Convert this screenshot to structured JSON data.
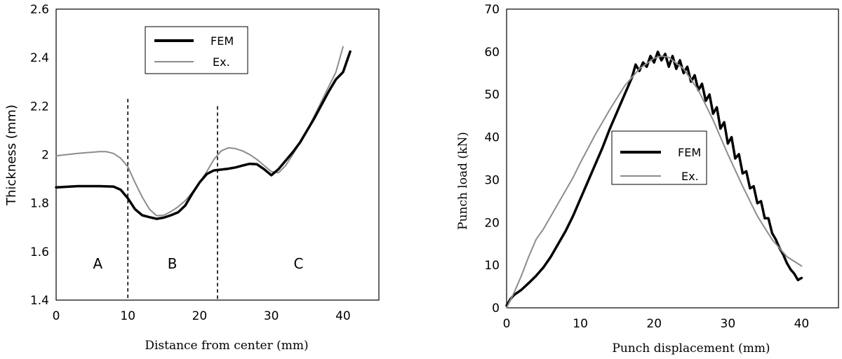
{
  "chart_data": [
    {
      "type": "line",
      "xlabel": "Distance from center (mm)",
      "ylabel": "Thickness (mm)",
      "xlim": [
        0,
        45
      ],
      "ylim": [
        1.4,
        2.6
      ],
      "xticks": [
        "0",
        "10",
        "20",
        "30",
        "40"
      ],
      "yticks": [
        "1.4",
        "1.6",
        "1.8",
        "2",
        "2.2",
        "2.4",
        "2.6"
      ],
      "legend": [
        "FEM",
        "Ex."
      ],
      "legend_position": "top-center",
      "region_labels": [
        {
          "text": "A",
          "x": 5.8,
          "y": 1.55
        },
        {
          "text": "B",
          "x": 16.2,
          "y": 1.55
        },
        {
          "text": "C",
          "x": 33.8,
          "y": 1.55
        }
      ],
      "dividers": [
        {
          "x": 10,
          "y_top": 2.23
        },
        {
          "x": 22.5,
          "y_top": 2.2
        }
      ],
      "series": [
        {
          "name": "FEM",
          "color": "#000000",
          "x": [
            0,
            3,
            6,
            8,
            9,
            10,
            11,
            12,
            13,
            14,
            15,
            16,
            17,
            18,
            19,
            20,
            21,
            22,
            23,
            24,
            25,
            26,
            27,
            28,
            29,
            30,
            31,
            32,
            33,
            34,
            35,
            36,
            37,
            38,
            39,
            40,
            41
          ],
          "y": [
            1.865,
            1.87,
            1.87,
            1.868,
            1.855,
            1.82,
            1.775,
            1.75,
            1.742,
            1.735,
            1.74,
            1.75,
            1.762,
            1.79,
            1.84,
            1.885,
            1.92,
            1.935,
            1.938,
            1.942,
            1.947,
            1.955,
            1.962,
            1.96,
            1.94,
            1.915,
            1.94,
            1.975,
            2.01,
            2.05,
            2.1,
            2.15,
            2.205,
            2.26,
            2.31,
            2.34,
            2.425
          ]
        },
        {
          "name": "Ex.",
          "color": "#8c8c8c",
          "x": [
            0,
            3,
            6,
            7,
            8,
            9,
            10,
            11,
            12,
            13,
            14,
            15,
            16,
            17,
            18,
            19,
            20,
            21,
            22,
            23,
            24,
            25,
            26,
            27,
            28,
            29,
            30,
            31,
            32,
            33,
            34,
            35,
            36,
            37,
            38,
            39,
            40
          ],
          "y": [
            1.995,
            2.005,
            2.012,
            2.012,
            2.005,
            1.985,
            1.95,
            1.885,
            1.825,
            1.775,
            1.748,
            1.75,
            1.765,
            1.785,
            1.81,
            1.845,
            1.885,
            1.93,
            1.98,
            2.015,
            2.028,
            2.025,
            2.015,
            2.0,
            1.98,
            1.955,
            1.93,
            1.925,
            1.955,
            2.0,
            2.05,
            2.1,
            2.16,
            2.22,
            2.28,
            2.34,
            2.445
          ]
        }
      ]
    },
    {
      "type": "line",
      "xlabel": "Punch displacement (mm)",
      "ylabel": "Punch load (kN)",
      "xlim": [
        0,
        45
      ],
      "ylim": [
        0,
        70
      ],
      "xticks": [
        "0",
        "10",
        "20",
        "30",
        "40"
      ],
      "yticks": [
        "0",
        "10",
        "20",
        "30",
        "40",
        "50",
        "60",
        "70"
      ],
      "legend": [
        "FEM",
        "Ex."
      ],
      "legend_position": "center-left",
      "series": [
        {
          "name": "FEM",
          "color": "#000000",
          "x": [
            0,
            0.5,
            1,
            2,
            3,
            4,
            5,
            6,
            7,
            8,
            9,
            10,
            11,
            12,
            13,
            14,
            15,
            16,
            17,
            17.5,
            18,
            18.5,
            19,
            19.5,
            20,
            20.5,
            21,
            21.5,
            22,
            22.5,
            23,
            23.5,
            24,
            24.5,
            25,
            25.5,
            26,
            26.5,
            27,
            27.5,
            28,
            28.5,
            29,
            29.5,
            30,
            30.5,
            31,
            31.5,
            32,
            32.5,
            33,
            33.5,
            34,
            34.5,
            35,
            35.5,
            36,
            36.5,
            37,
            37.5,
            38,
            38.5,
            39,
            39.5,
            40
          ],
          "y": [
            0.5,
            2,
            3,
            4.2,
            5.8,
            7.5,
            9.5,
            12,
            15,
            18,
            21.5,
            25.5,
            29.5,
            33.5,
            37.5,
            42,
            46,
            50,
            54,
            57,
            55.5,
            57.5,
            56.5,
            59,
            57.5,
            60,
            58,
            59.5,
            56.5,
            59,
            56,
            58,
            55,
            56.5,
            53,
            54.5,
            51,
            52.5,
            48.5,
            50,
            45.5,
            47,
            42,
            43.5,
            38.5,
            40,
            35,
            36,
            31.5,
            32,
            28,
            28.5,
            24.5,
            25,
            21,
            21,
            17.5,
            16,
            14,
            12.5,
            10.5,
            9,
            8,
            6.5,
            7
          ]
        },
        {
          "name": "Ex.",
          "color": "#8c8c8c",
          "x": [
            0,
            1,
            2,
            3,
            4,
            5,
            6,
            7,
            8,
            9,
            10,
            12,
            14,
            16,
            18,
            20,
            21,
            22,
            24,
            26,
            28,
            30,
            32,
            34,
            36,
            38,
            40
          ],
          "y": [
            0,
            3.5,
            7.5,
            12,
            16,
            18.5,
            21.5,
            24.5,
            27.5,
            30.5,
            34,
            40.5,
            46.5,
            52,
            56,
            58.5,
            59,
            58.7,
            56,
            51,
            44,
            36,
            28.5,
            21.5,
            16,
            12,
            9.8
          ]
        }
      ]
    }
  ]
}
